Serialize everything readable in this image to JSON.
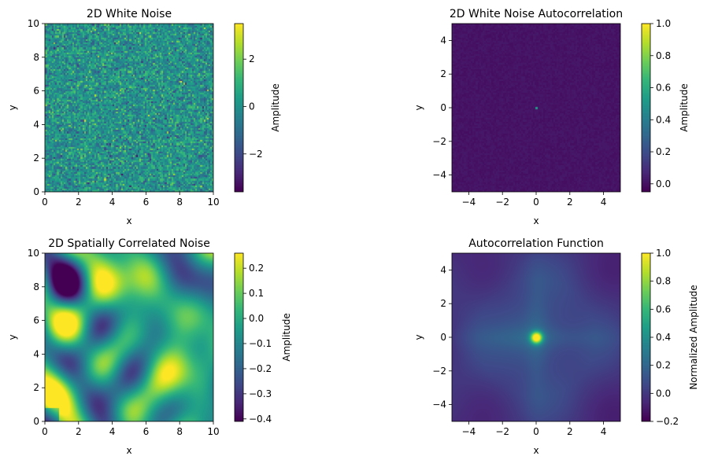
{
  "colormap": [
    "#440154",
    "#482878",
    "#3e4a89",
    "#31688e",
    "#26828e",
    "#1f9e89",
    "#35b779",
    "#6ece58",
    "#b5de2b",
    "#fde725"
  ],
  "chart_data": [
    {
      "type": "heatmap",
      "title": "2D White Noise",
      "xlabel": "x",
      "ylabel": "y",
      "xlim": [
        0,
        10
      ],
      "ylim": [
        0,
        10
      ],
      "xticks": [
        "0",
        "2",
        "4",
        "6",
        "8",
        "10"
      ],
      "yticks": [
        "0",
        "2",
        "4",
        "6",
        "8",
        "10"
      ],
      "colorbar": {
        "label": "Amplitude",
        "range": [
          -3.6,
          3.5
        ],
        "ticks": [
          {
            "v": 2,
            "t": "2"
          },
          {
            "v": 0,
            "t": "0"
          },
          {
            "v": -2,
            "t": "−2"
          }
        ]
      },
      "field": "white-noise"
    },
    {
      "type": "heatmap",
      "title": "2D White Noise Autocorrelation",
      "xlabel": "x",
      "ylabel": "y",
      "xlim": [
        -5,
        5
      ],
      "ylim": [
        -5,
        5
      ],
      "xticks": [
        "−4",
        "−2",
        "0",
        "2",
        "4"
      ],
      "yticks": [
        "−4",
        "−2",
        "0",
        "2",
        "4"
      ],
      "colorbar": {
        "label": "Amplitude",
        "range": [
          -0.05,
          1.0
        ],
        "ticks": [
          {
            "v": 1.0,
            "t": "1.0"
          },
          {
            "v": 0.8,
            "t": "0.8"
          },
          {
            "v": 0.6,
            "t": "0.6"
          },
          {
            "v": 0.4,
            "t": "0.4"
          },
          {
            "v": 0.2,
            "t": "0.2"
          },
          {
            "v": 0.0,
            "t": "0.0"
          }
        ]
      },
      "field": "white-autocorr"
    },
    {
      "type": "heatmap",
      "title": "2D Spatially Correlated Noise",
      "xlabel": "x",
      "ylabel": "y",
      "xlim": [
        0,
        10
      ],
      "ylim": [
        0,
        10
      ],
      "xticks": [
        "0",
        "2",
        "4",
        "6",
        "8",
        "10"
      ],
      "yticks": [
        "0",
        "2",
        "4",
        "6",
        "8",
        "10"
      ],
      "colorbar": {
        "label": "Amplitude",
        "range": [
          -0.41,
          0.26
        ],
        "ticks": [
          {
            "v": 0.2,
            "t": "0.2"
          },
          {
            "v": 0.1,
            "t": "0.1"
          },
          {
            "v": 0.0,
            "t": "0.0"
          },
          {
            "v": -0.1,
            "t": "−0.1"
          },
          {
            "v": -0.2,
            "t": "−0.2"
          },
          {
            "v": -0.3,
            "t": "−0.3"
          },
          {
            "v": -0.4,
            "t": "−0.4"
          }
        ]
      },
      "field": "correlated"
    },
    {
      "type": "heatmap",
      "title": "Autocorrelation Function",
      "xlabel": "x",
      "ylabel": "y",
      "xlim": [
        -5,
        5
      ],
      "ylim": [
        -5,
        5
      ],
      "xticks": [
        "−4",
        "−2",
        "0",
        "2",
        "4"
      ],
      "yticks": [
        "−4",
        "−2",
        "0",
        "2",
        "4"
      ],
      "colorbar": {
        "label": "Normalized Amplitude",
        "range": [
          -0.2,
          1.0
        ],
        "ticks": [
          {
            "v": 1.0,
            "t": "1.0"
          },
          {
            "v": 0.8,
            "t": "0.8"
          },
          {
            "v": 0.6,
            "t": "0.6"
          },
          {
            "v": 0.4,
            "t": "0.4"
          },
          {
            "v": 0.2,
            "t": "0.2"
          },
          {
            "v": 0.0,
            "t": "0.0"
          },
          {
            "v": -0.2,
            "t": "−0.2"
          }
        ]
      },
      "field": "corr-autocorr"
    }
  ]
}
